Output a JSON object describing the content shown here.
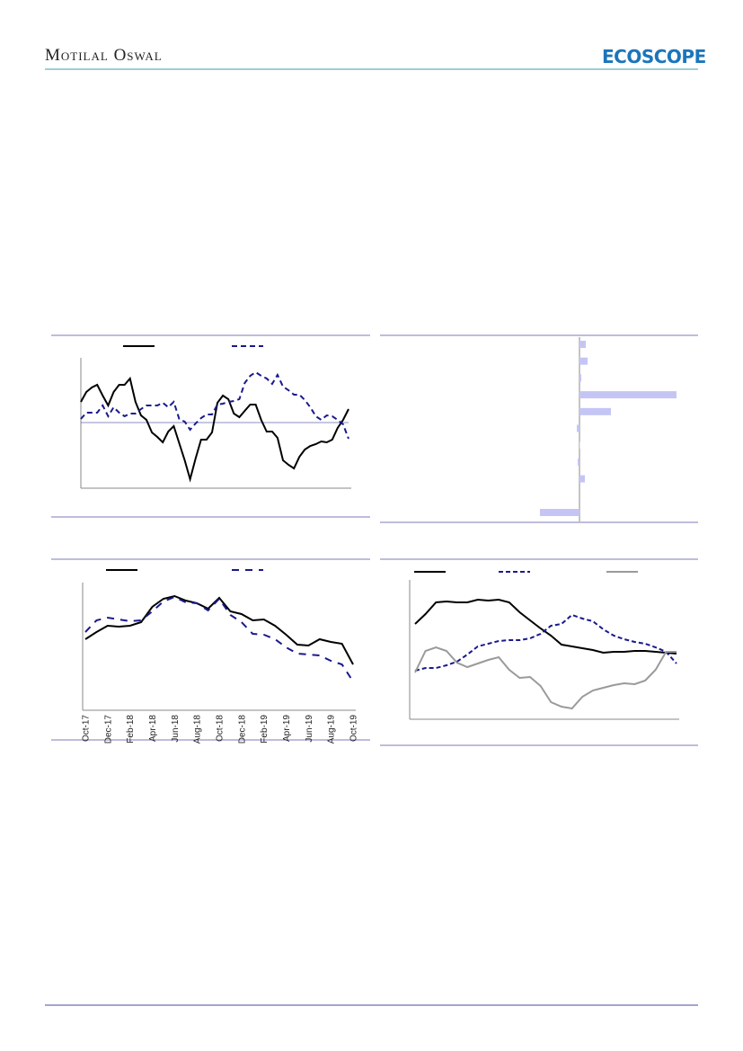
{
  "header": {
    "brand": "Motilal Oswal",
    "logo": "ECOSCOPE"
  },
  "charts": [
    {
      "type": "line",
      "ylim": [
        0,
        145
      ],
      "reference_line": 73,
      "series": [
        {
          "color": "#000000",
          "style": "solid",
          "values": [
            96,
            107,
            112,
            115,
            103,
            92,
            107,
            115,
            115,
            122,
            96,
            81,
            76,
            62,
            57,
            51,
            63,
            69,
            50,
            31,
            10,
            33,
            54,
            54,
            62,
            95,
            103,
            99,
            83,
            79,
            86,
            93,
            93,
            76,
            63,
            63,
            56,
            31,
            26,
            22,
            35,
            43,
            47,
            49,
            52,
            51,
            54,
            67,
            76,
            88
          ]
        },
        {
          "color": "#1a1a8c",
          "style": "dashed",
          "values": [
            77,
            84,
            84,
            84,
            92,
            80,
            90,
            84,
            80,
            83,
            83,
            88,
            92,
            92,
            92,
            95,
            90,
            96,
            77,
            74,
            65,
            72,
            78,
            82,
            82,
            93,
            94,
            96,
            97,
            99,
            117,
            125,
            129,
            125,
            122,
            116,
            126,
            113,
            109,
            104,
            104,
            98,
            90,
            80,
            76,
            81,
            80,
            76,
            71,
            55
          ]
        }
      ]
    },
    {
      "type": "hbar",
      "xlim": [
        -215,
        125
      ],
      "color": "#c5c5f5",
      "values": [
        7,
        9,
        2,
        108,
        35,
        -3,
        0.5,
        -2,
        6,
        0,
        -44
      ]
    },
    {
      "type": "line",
      "ylim": [
        0,
        142
      ],
      "categories": [
        "Oct-17",
        null,
        "Dec-17",
        null,
        "Feb-18",
        null,
        "Apr-18",
        null,
        "Jun-18",
        null,
        "Aug-18",
        null,
        "Oct-18",
        null,
        "Dec-18",
        null,
        "Feb-19",
        null,
        "Apr-19",
        null,
        "Jun-19",
        null,
        "Aug-19",
        null,
        "Oct-19"
      ],
      "series": [
        {
          "color": "#000000",
          "style": "solid",
          "values": [
            79,
            87,
            94,
            93,
            94,
            98,
            115,
            124,
            127,
            122,
            119,
            113,
            125,
            110,
            107,
            100,
            101,
            94,
            84,
            73,
            72,
            79,
            76,
            74,
            51
          ]
        },
        {
          "color": "#1a1a8c",
          "style": "dashed",
          "values": [
            87,
            100,
            103,
            101,
            99,
            100,
            110,
            121,
            126,
            120,
            119,
            111,
            124,
            106,
            98,
            85,
            84,
            79,
            70,
            63,
            62,
            61,
            55,
            51,
            32
          ]
        }
      ]
    },
    {
      "type": "line",
      "ylim": [
        0,
        155
      ],
      "series": [
        {
          "color": "#000000",
          "style": "solid",
          "values": [
            106,
            117,
            130,
            131,
            130,
            130,
            133,
            132,
            133,
            130,
            119,
            110,
            101,
            93,
            83,
            81,
            79,
            77,
            74,
            75,
            75,
            76,
            76,
            75,
            74,
            73
          ]
        },
        {
          "color": "#1a1a8c",
          "style": "dashed",
          "values": [
            54,
            57,
            57,
            60,
            64,
            72,
            81,
            84,
            87,
            88,
            88,
            90,
            95,
            104,
            106,
            116,
            112,
            109,
            100,
            93,
            89,
            86,
            84,
            80,
            75,
            62
          ]
        },
        {
          "color": "#9a9a9a",
          "style": "solid",
          "values": [
            52,
            76,
            80,
            76,
            63,
            58,
            62,
            66,
            69,
            55,
            46,
            47,
            37,
            19,
            14,
            12,
            25,
            32,
            35,
            38,
            40,
            39,
            43,
            55,
            75,
            75
          ]
        }
      ]
    }
  ]
}
